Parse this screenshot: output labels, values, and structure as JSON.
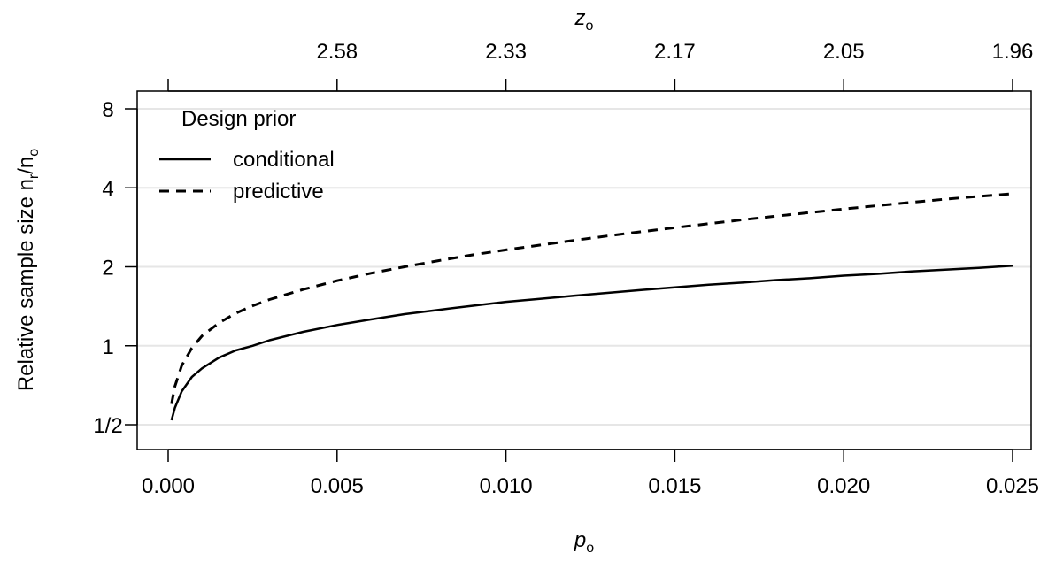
{
  "chart_data": {
    "type": "line",
    "title": "",
    "xlabel": {
      "main": "p",
      "sub": "o"
    },
    "x2label": {
      "main": "z",
      "sub": "o"
    },
    "ylabel": {
      "main": "Relative sample size n",
      "sub1": "r",
      "sep": "/n",
      "sub2": "o"
    },
    "xlim": [
      0.0001,
      0.025
    ],
    "ylim_log2": [
      0.5,
      8
    ],
    "y_scale": "log2",
    "grid": "horizontal",
    "xticks": [
      {
        "value": 0.0,
        "label": "0.000"
      },
      {
        "value": 0.005,
        "label": "0.005"
      },
      {
        "value": 0.01,
        "label": "0.010"
      },
      {
        "value": 0.015,
        "label": "0.015"
      },
      {
        "value": 0.02,
        "label": "0.020"
      },
      {
        "value": 0.025,
        "label": "0.025"
      }
    ],
    "x2ticks": [
      {
        "value": 0.0,
        "label": ""
      },
      {
        "value": 0.005,
        "label": "2.58"
      },
      {
        "value": 0.01,
        "label": "2.33"
      },
      {
        "value": 0.015,
        "label": "2.17"
      },
      {
        "value": 0.02,
        "label": "2.05"
      },
      {
        "value": 0.025,
        "label": "1.96"
      }
    ],
    "yticks": [
      {
        "value": 0.5,
        "label": "1/2"
      },
      {
        "value": 1,
        "label": "1"
      },
      {
        "value": 2,
        "label": "2"
      },
      {
        "value": 4,
        "label": "4"
      },
      {
        "value": 8,
        "label": "8"
      }
    ],
    "legend": {
      "title": "Design prior",
      "placement": "top-left"
    },
    "series": [
      {
        "name": "conditional",
        "style": "solid",
        "x": [
          0.0001,
          0.0002,
          0.0004,
          0.0007,
          0.001,
          0.0015,
          0.002,
          0.0025,
          0.003,
          0.004,
          0.005,
          0.006,
          0.007,
          0.008,
          0.009,
          0.01,
          0.011,
          0.012,
          0.013,
          0.014,
          0.015,
          0.016,
          0.017,
          0.018,
          0.019,
          0.02,
          0.021,
          0.022,
          0.023,
          0.024,
          0.025
        ],
        "y": [
          0.52,
          0.58,
          0.67,
          0.76,
          0.82,
          0.9,
          0.96,
          1.0,
          1.05,
          1.13,
          1.2,
          1.26,
          1.32,
          1.37,
          1.42,
          1.47,
          1.51,
          1.55,
          1.59,
          1.63,
          1.67,
          1.71,
          1.74,
          1.78,
          1.81,
          1.85,
          1.88,
          1.92,
          1.95,
          1.98,
          2.02
        ]
      },
      {
        "name": "predictive",
        "style": "dashed",
        "x": [
          0.0001,
          0.0002,
          0.0004,
          0.0007,
          0.001,
          0.0015,
          0.002,
          0.0025,
          0.003,
          0.004,
          0.005,
          0.006,
          0.007,
          0.008,
          0.009,
          0.01,
          0.011,
          0.012,
          0.013,
          0.014,
          0.015,
          0.016,
          0.017,
          0.018,
          0.019,
          0.02,
          0.021,
          0.022,
          0.023,
          0.024,
          0.025
        ],
        "y": [
          0.6,
          0.7,
          0.84,
          0.98,
          1.09,
          1.22,
          1.33,
          1.42,
          1.5,
          1.64,
          1.77,
          1.89,
          2.0,
          2.11,
          2.22,
          2.32,
          2.42,
          2.52,
          2.62,
          2.72,
          2.82,
          2.92,
          3.02,
          3.12,
          3.22,
          3.32,
          3.42,
          3.52,
          3.62,
          3.71,
          3.8
        ]
      }
    ]
  }
}
